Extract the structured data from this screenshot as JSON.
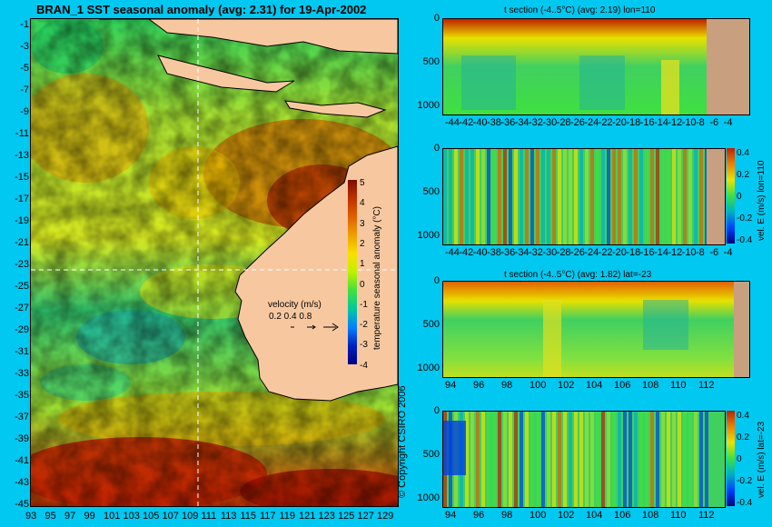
{
  "map": {
    "title": "BRAN_1 SST seasonal anomaly (avg: 2.31) for 19-Apr-2002",
    "lat_ticks": [
      "-1",
      "-3",
      "-5",
      "-7",
      "-9",
      "-11",
      "-13",
      "-15",
      "-17",
      "-19",
      "-21",
      "-23",
      "-25",
      "-27",
      "-29",
      "-31",
      "-33",
      "-35",
      "-37",
      "-39",
      "-41",
      "-43",
      "-45"
    ],
    "lon_ticks": [
      "93",
      "95",
      "97",
      "99",
      "101",
      "103",
      "105",
      "107",
      "109",
      "111",
      "113",
      "115",
      "117",
      "119",
      "121",
      "123",
      "125",
      "127",
      "129"
    ],
    "colorbar_label": "temperature seasonal anomaly (°C)",
    "colorbar_ticks": [
      "5",
      "4",
      "3",
      "2",
      "1",
      "0",
      "-1",
      "-2",
      "-3",
      "-4"
    ],
    "velocity_label": "velocity (m/s)",
    "velocity_scale": "0.2 0.4 0.8",
    "copyright": "© Copyright CSIRO 2006",
    "crosshair": {
      "lat": -23,
      "lon": 110
    }
  },
  "sections": [
    {
      "title": "t section (-4..5°C) (avg: 2.19) lon=110",
      "x_ticks": [
        "-44",
        "-42",
        "-40",
        "-38",
        "-36",
        "-34",
        "-32",
        "-30",
        "-28",
        "-26",
        "-24",
        "-22",
        "-20",
        "-18",
        "-16",
        "-14",
        "-12",
        "-10",
        "-8",
        "-6",
        "-4"
      ],
      "y_ticks": [
        "0",
        "500",
        "1000"
      ]
    },
    {
      "title": "",
      "x_ticks": [
        "-44",
        "-42",
        "-40",
        "-38",
        "-36",
        "-34",
        "-32",
        "-30",
        "-28",
        "-26",
        "-24",
        "-22",
        "-20",
        "-18",
        "-16",
        "-14",
        "-12",
        "-10",
        "-8",
        "-6",
        "-4"
      ],
      "y_ticks": [
        "0",
        "500",
        "1000"
      ],
      "colorbar_label": "vel. E (m/s) lon=110",
      "colorbar_ticks": [
        "0.4",
        "0.2",
        "0",
        "-0.2",
        "-0.4"
      ]
    },
    {
      "title": "t section (-4..5°C) (avg: 1.82) lat=-23",
      "x_ticks": [
        "94",
        "96",
        "98",
        "100",
        "102",
        "104",
        "106",
        "108",
        "110",
        "112"
      ],
      "y_ticks": [
        "0",
        "500",
        "1000"
      ]
    },
    {
      "title": "",
      "x_ticks": [
        "94",
        "96",
        "98",
        "100",
        "102",
        "104",
        "106",
        "108",
        "110",
        "112"
      ],
      "y_ticks": [
        "0",
        "500",
        "1000"
      ],
      "colorbar_label": "vel. E (m/s) lat=-23",
      "colorbar_ticks": [
        "0.4",
        "0.2",
        "0",
        "-0.2",
        "-0.4"
      ]
    }
  ],
  "colors": {
    "background": "#00c8f0",
    "land": "#f7c8a0",
    "section_land": "#c8a080"
  }
}
